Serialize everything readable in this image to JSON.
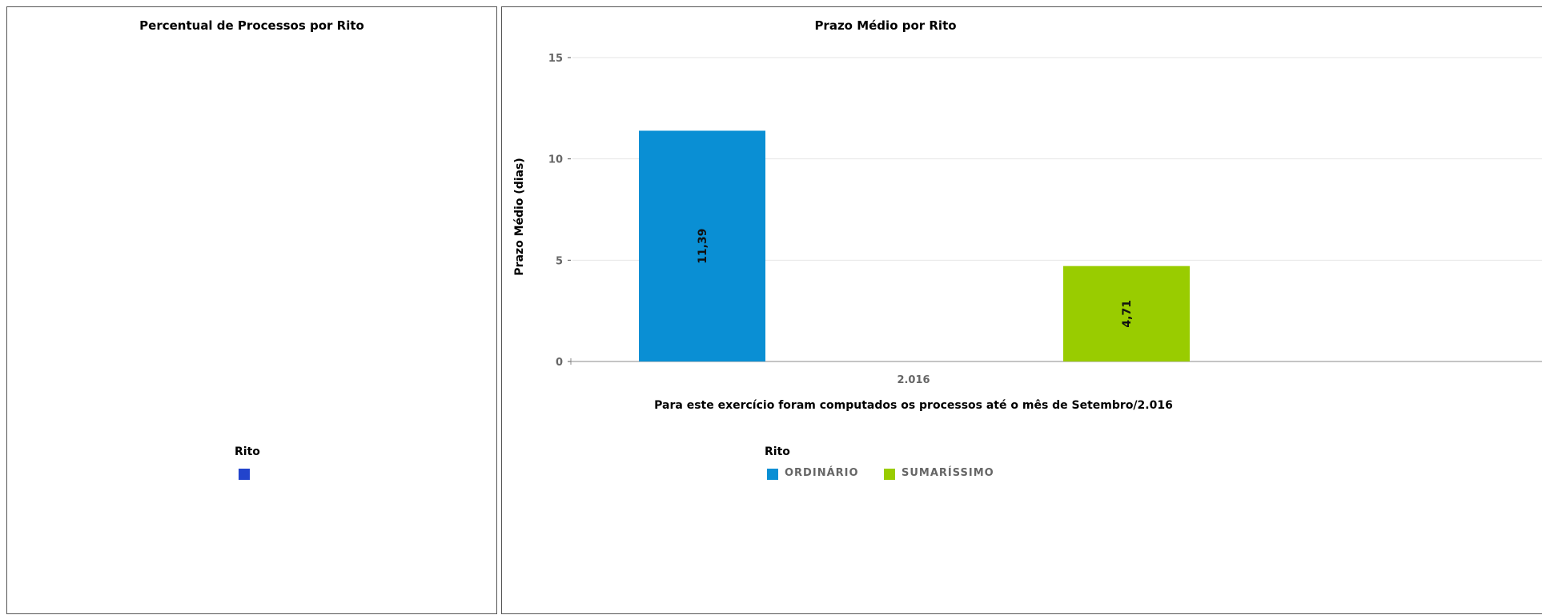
{
  "left_chart": {
    "title": "Percentual de Processos por Rito",
    "legend_title": "Rito",
    "legend_color": "#2244cc"
  },
  "chart_data": [
    {
      "type": "pie",
      "title": "Percentual de Processos por Rito",
      "legend_title": "Rito",
      "slices": []
    },
    {
      "type": "bar",
      "title": "Prazo Médio por Rito",
      "ylabel": "Prazo Médio (dias)",
      "xlabel": "Para este exercício foram computados os processos até o mês de Setembro/2.016",
      "categories": [
        "2.016"
      ],
      "ylim": [
        0,
        15
      ],
      "yticks": [
        0,
        5,
        10,
        15
      ],
      "ytick_labels": [
        "0",
        "5",
        "10",
        "15"
      ],
      "grid": true,
      "legend_title": "Rito",
      "legend_placement": "bottom",
      "series": [
        {
          "name": "ORDINÁRIO",
          "values": [
            11.39
          ],
          "labels": [
            "11,39"
          ],
          "color": "#0a8fd4"
        },
        {
          "name": "SUMARÍSSIMO",
          "values": [
            4.71
          ],
          "labels": [
            "4,71"
          ],
          "color": "#99cc00"
        }
      ]
    }
  ]
}
